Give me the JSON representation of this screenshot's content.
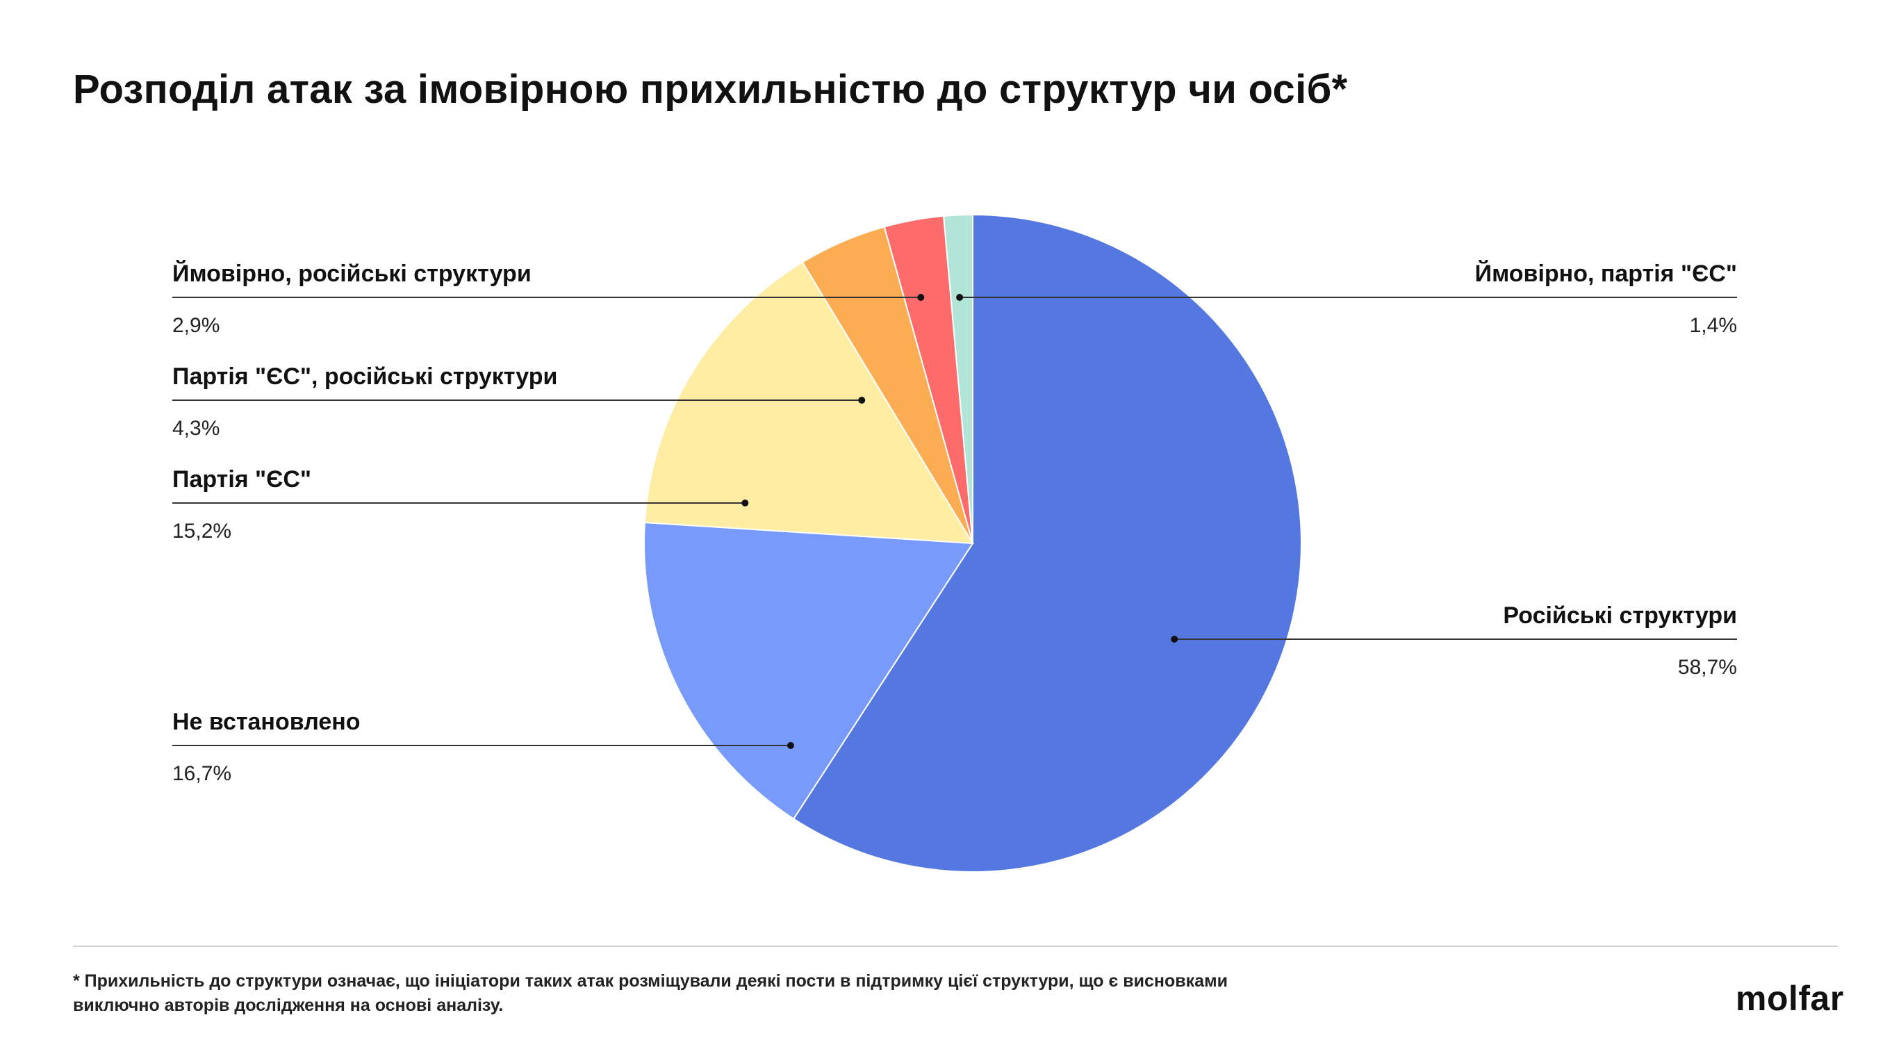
{
  "page": {
    "title": "Розподіл атак за імовірною прихильністю до структур чи осіб*",
    "footnote": "* Прихильність до структури означає, що ініціатори таких атак розміщували деякі пости в підтримку цієї структури, що є висновками виключно авторів дослідження на основі аналізу.",
    "logo": "molfar"
  },
  "chart_data": {
    "type": "pie",
    "title": "Розподіл атак за імовірною прихильністю до структур чи осіб*",
    "slices": [
      {
        "label": "Російські структури",
        "value": 58.7,
        "value_label": "58,7%",
        "color": "#5478e0",
        "label_side": "right"
      },
      {
        "label": "Не встановлено",
        "value": 16.7,
        "value_label": "16,7%",
        "color": "#789bfb",
        "label_side": "left"
      },
      {
        "label": "Партія \"ЄС\"",
        "value": 15.2,
        "value_label": "15,2%",
        "color": "#feeda3",
        "label_side": "left"
      },
      {
        "label": "Партія \"ЄС\", російські структури",
        "value": 4.3,
        "value_label": "4,3%",
        "color": "#fcad54",
        "label_side": "left"
      },
      {
        "label": "Ймовірно, російські структури",
        "value": 2.9,
        "value_label": "2,9%",
        "color": "#fd6b6b",
        "label_side": "left"
      },
      {
        "label": "Ймовірно, партія \"ЄС\"",
        "value": 1.4,
        "value_label": "1,4%",
        "color": "#b3e4d8",
        "label_side": "right"
      }
    ],
    "start": "12 o'clock",
    "direction": "clockwise",
    "legend": "none, callout labels"
  }
}
